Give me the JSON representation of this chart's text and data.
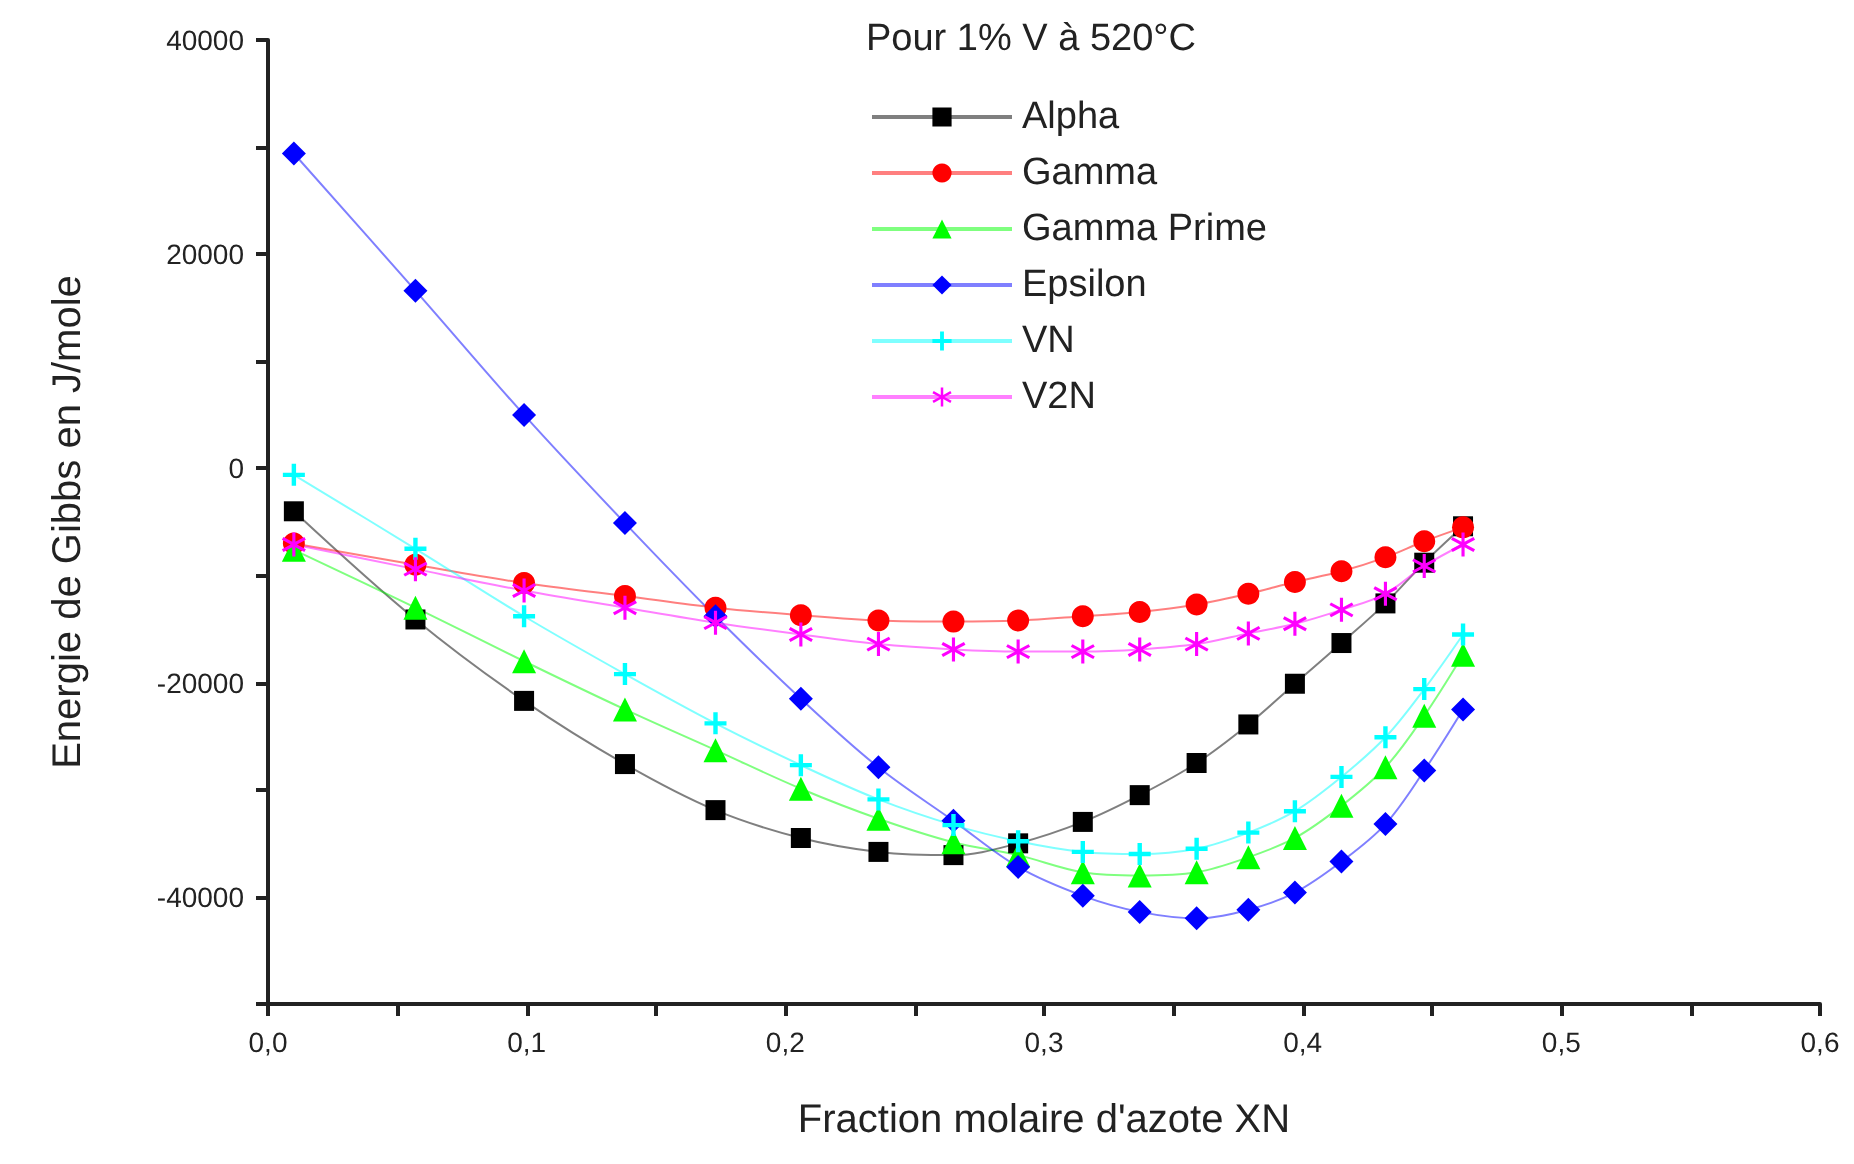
{
  "chart_data": {
    "type": "line",
    "xlabel": "Fraction molaire d'azote XN",
    "ylabel": "Energie de Gibbs en J/mole",
    "legend_title": "Pour 1% V à 520°C",
    "legend": "top right",
    "grid": false,
    "line_style": "solid",
    "x": [
      0.01,
      0.057,
      0.099,
      0.138,
      0.173,
      0.206,
      0.236,
      0.265,
      0.29,
      0.315,
      0.337,
      0.359,
      0.379,
      0.397,
      0.415,
      0.432,
      0.447,
      0.462
    ],
    "xlim": [
      0,
      0.6
    ],
    "xticks": [
      {
        "value": 0,
        "label": "0,0"
      },
      {
        "value": 0.05,
        "label": null
      },
      {
        "value": 0.1,
        "label": "0,1"
      },
      {
        "value": 0.15,
        "label": null
      },
      {
        "value": 0.2,
        "label": "0,2"
      },
      {
        "value": 0.25,
        "label": null
      },
      {
        "value": 0.3,
        "label": "0,3"
      },
      {
        "value": 0.35,
        "label": null
      },
      {
        "value": 0.4,
        "label": "0,4"
      },
      {
        "value": 0.45,
        "label": null
      },
      {
        "value": 0.5,
        "label": "0,5"
      },
      {
        "value": 0.55,
        "label": null
      },
      {
        "value": 0.6,
        "label": "0,6"
      }
    ],
    "ylim": [
      -50000,
      40000
    ],
    "yticks": [
      {
        "value": -50000,
        "label": null
      },
      -40000,
      {
        "value": -30000,
        "label": null
      },
      -20000,
      {
        "value": -10000,
        "label": null
      },
      0,
      {
        "value": 10000,
        "label": null
      },
      20000,
      {
        "value": 30000,
        "label": null
      },
      40000
    ],
    "series": [
      {
        "name": "Alpha",
        "color": "#000000",
        "marker": "square",
        "values": [
          -4000,
          -14100,
          -21700,
          -27600,
          -31900,
          -34500,
          -35800,
          -36100,
          -35000,
          -33000,
          -30500,
          -27500,
          -23900,
          -20100,
          -16300,
          -12600,
          -8800,
          -5400
        ]
      },
      {
        "name": "Gamma",
        "color": "#ff0000",
        "marker": "circle",
        "values": [
          -7000,
          -9000,
          -10700,
          -11900,
          -13000,
          -13700,
          -14200,
          -14300,
          -14200,
          -13800,
          -13400,
          -12700,
          -11700,
          -10600,
          -9600,
          -8300,
          -6800,
          -5500
        ]
      },
      {
        "name": "Gamma Prime",
        "color": "#00ff00",
        "marker": "triangle",
        "values": [
          -7600,
          -13000,
          -18000,
          -22500,
          -26300,
          -29900,
          -32700,
          -34900,
          -36100,
          -37700,
          -38000,
          -37700,
          -36300,
          -34500,
          -31500,
          -27900,
          -23100,
          -17400
        ]
      },
      {
        "name": "Epsilon",
        "color": "#0000ff",
        "marker": "diamond",
        "values": [
          29400,
          16600,
          5000,
          -5100,
          -13800,
          -21500,
          -27900,
          -32900,
          -37200,
          -39900,
          -41400,
          -42000,
          -41200,
          -39600,
          -36700,
          -33200,
          -28200,
          -22500
        ]
      },
      {
        "name": "VN",
        "color": "#00ffff",
        "marker": "cross",
        "values": [
          -600,
          -7500,
          -13800,
          -19200,
          -23800,
          -27700,
          -30900,
          -33300,
          -34800,
          -35800,
          -36000,
          -35500,
          -34000,
          -32000,
          -28800,
          -25100,
          -20600,
          -15500
        ]
      },
      {
        "name": "V2N",
        "color": "#ff00ff",
        "marker": "star",
        "values": [
          -7100,
          -9400,
          -11400,
          -13000,
          -14400,
          -15500,
          -16400,
          -16900,
          -17100,
          -17100,
          -16900,
          -16400,
          -15400,
          -14500,
          -13200,
          -11700,
          -9100,
          -7100
        ]
      }
    ]
  }
}
